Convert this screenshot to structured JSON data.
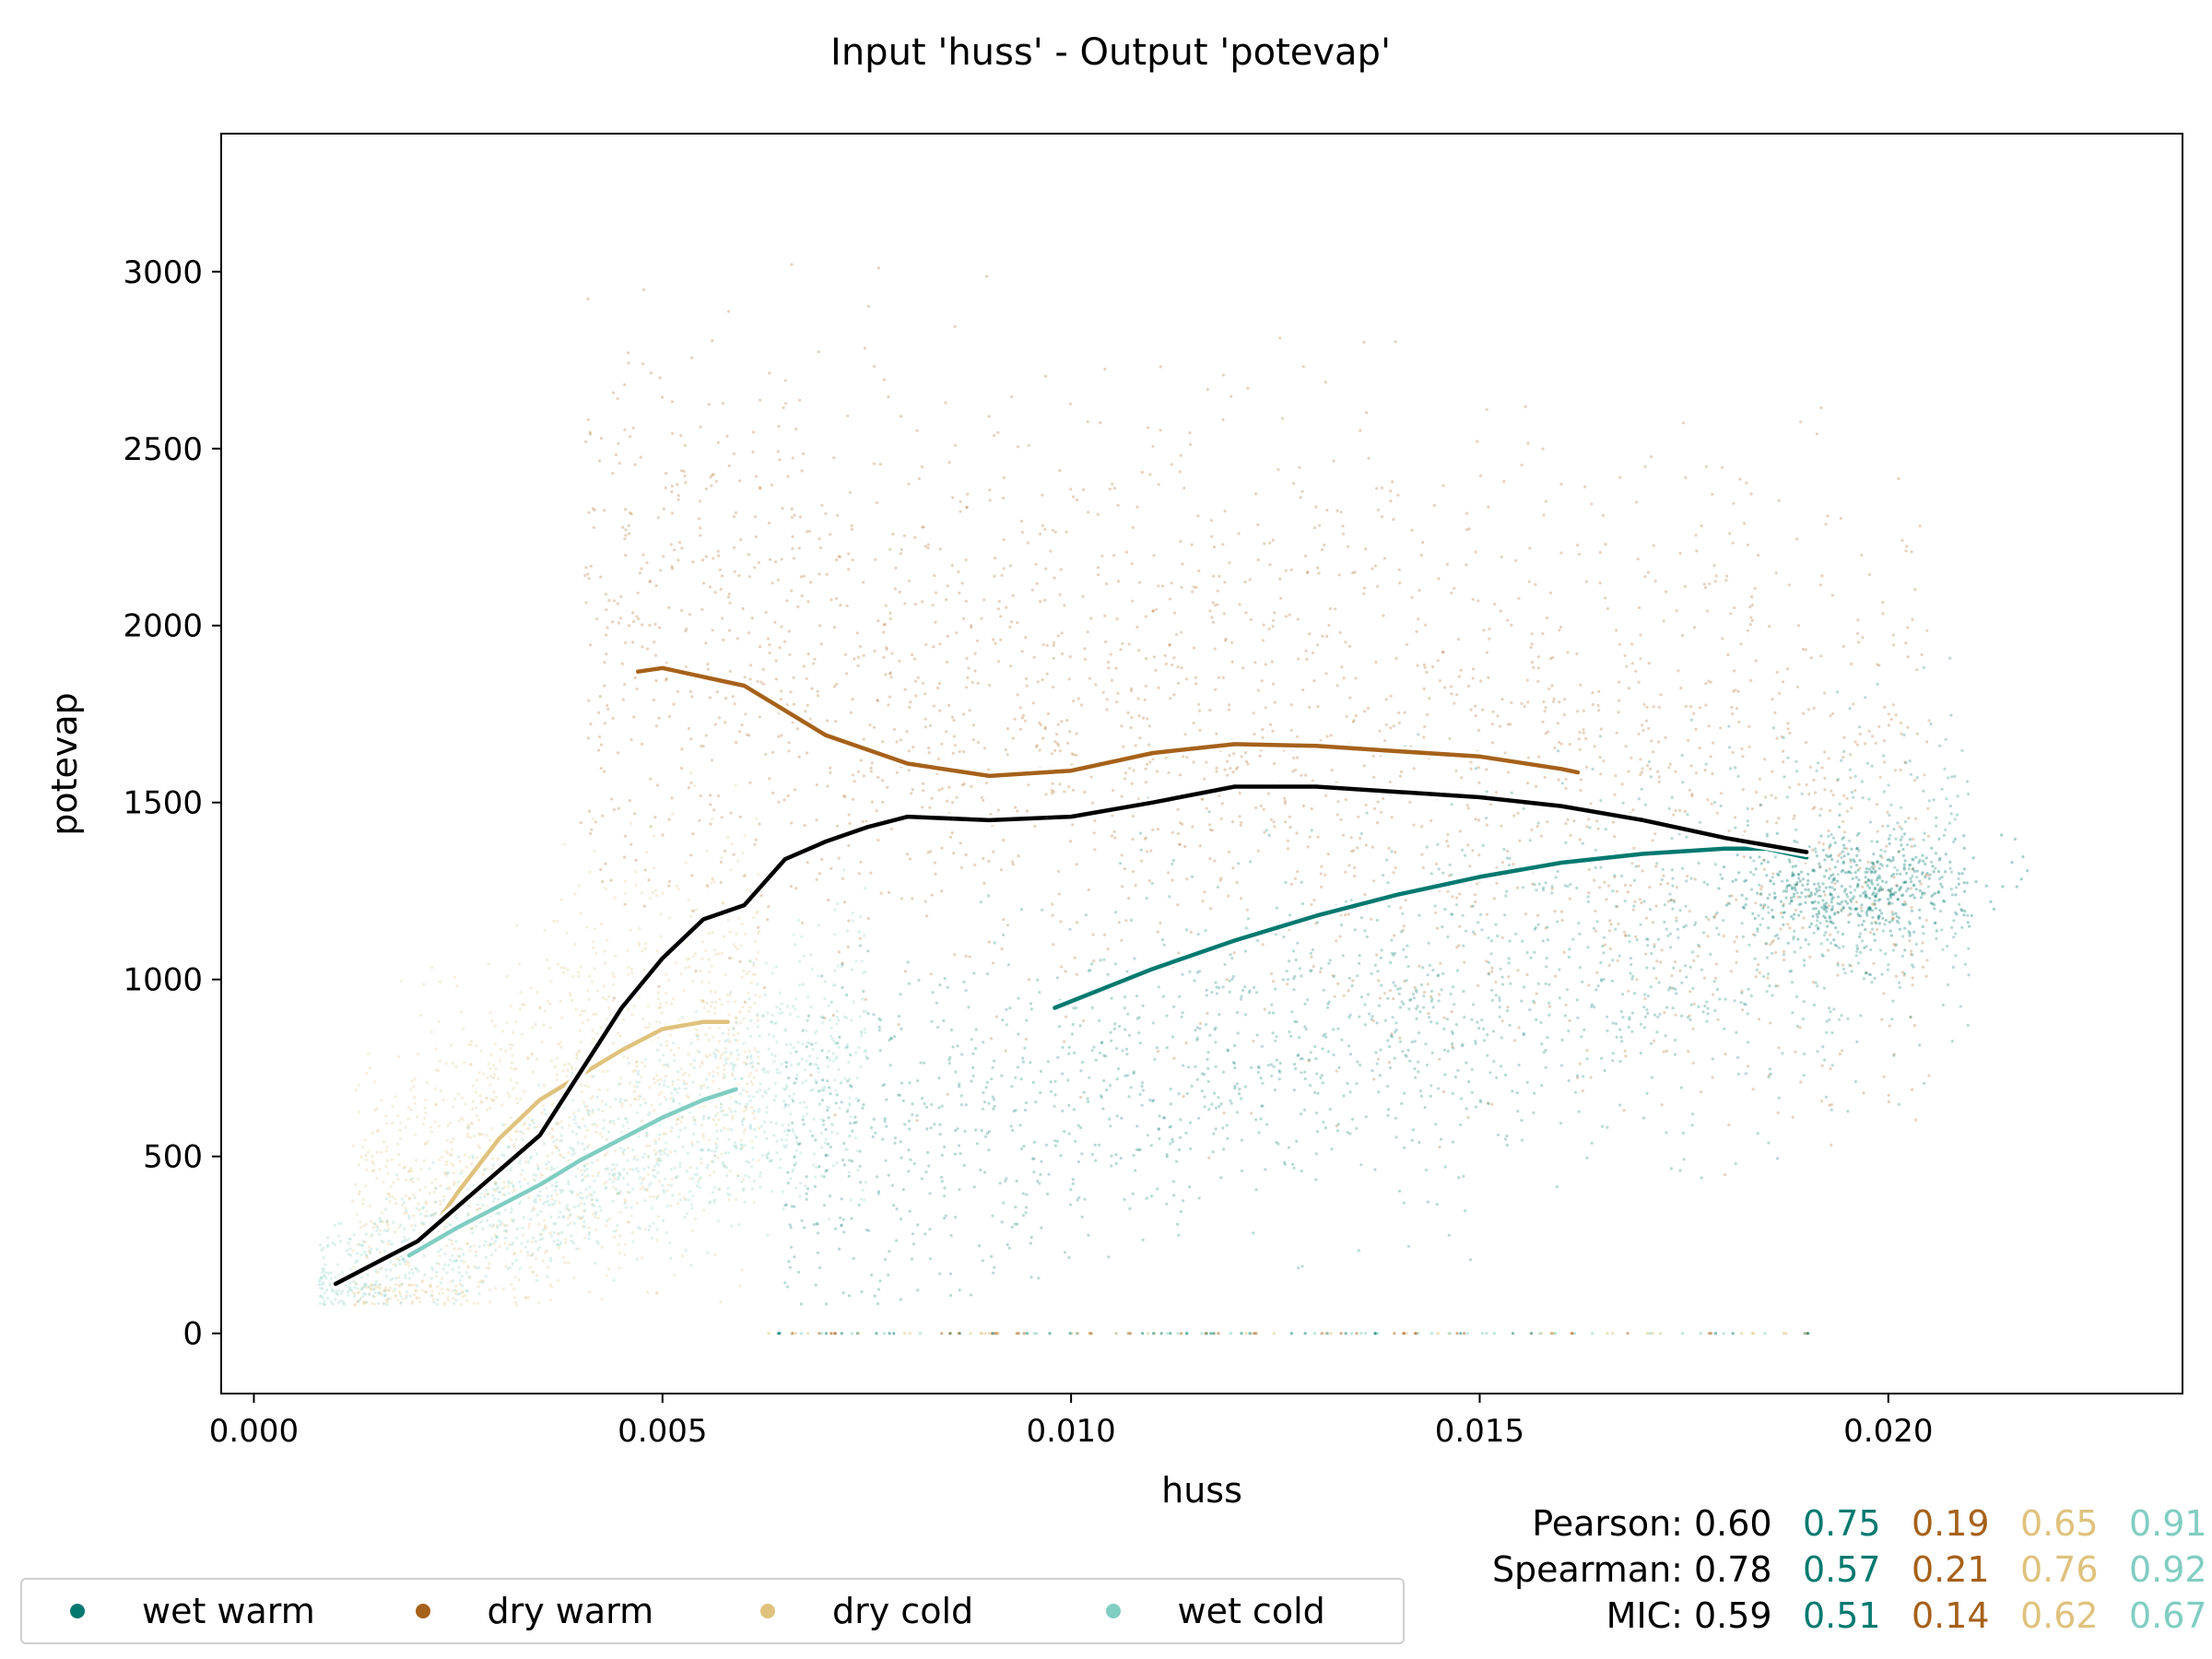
{
  "chart_data": {
    "type": "scatter",
    "title": "Input 'huss' - Output 'potevap'",
    "xlabel": "huss",
    "ylabel": "potevap",
    "xlim": [
      -0.0004,
      0.0236
    ],
    "ylim": [
      -170,
      3390
    ],
    "xticks": [
      0.0,
      0.005,
      0.01,
      0.015,
      0.02
    ],
    "xtick_labels": [
      "0.000",
      "0.005",
      "0.010",
      "0.015",
      "0.020"
    ],
    "yticks": [
      0,
      500,
      1000,
      1500,
      2000,
      2500,
      3000
    ],
    "ytick_labels": [
      "0",
      "500",
      "1000",
      "1500",
      "2000",
      "2500",
      "3000"
    ],
    "grid": false,
    "legend_position": "bottom-left",
    "colors": {
      "overall": "#000000",
      "wet warm": "#01796f",
      "dry warm": "#a6611a",
      "dry cold": "#dfc27d",
      "wet cold": "#80cdc1"
    },
    "series": [
      {
        "name": "wet warm",
        "color": "#01796f",
        "cloud": {
          "x": [
            0.0065,
            0.021
          ],
          "y_center": [
            500,
            1300
          ],
          "spread": 260,
          "dense_center": [
            0.0196,
            1260
          ]
        },
        "trend": [
          [
            0.0098,
            920
          ],
          [
            0.011,
            1030
          ],
          [
            0.012,
            1110
          ],
          [
            0.013,
            1180
          ],
          [
            0.014,
            1240
          ],
          [
            0.015,
            1290
          ],
          [
            0.016,
            1330
          ],
          [
            0.017,
            1355
          ],
          [
            0.018,
            1370
          ],
          [
            0.0185,
            1370
          ],
          [
            0.019,
            1345
          ]
        ]
      },
      {
        "name": "dry warm",
        "color": "#a6611a",
        "cloud": {
          "x": [
            0.004,
            0.0205
          ],
          "y_center": [
            1950,
            1450
          ],
          "spread": 420
        },
        "trend": [
          [
            0.0047,
            1870
          ],
          [
            0.005,
            1880
          ],
          [
            0.006,
            1830
          ],
          [
            0.007,
            1690
          ],
          [
            0.008,
            1610
          ],
          [
            0.009,
            1575
          ],
          [
            0.01,
            1590
          ],
          [
            0.011,
            1640
          ],
          [
            0.012,
            1665
          ],
          [
            0.013,
            1660
          ],
          [
            0.014,
            1645
          ],
          [
            0.015,
            1630
          ],
          [
            0.016,
            1595
          ],
          [
            0.0162,
            1585
          ]
        ]
      },
      {
        "name": "dry cold",
        "color": "#dfc27d",
        "cloud": {
          "x": [
            0.0012,
            0.0062
          ],
          "y_center": [
            250,
            950
          ],
          "spread": 280
        },
        "trend": [
          [
            0.0022,
            300
          ],
          [
            0.0025,
            400
          ],
          [
            0.003,
            550
          ],
          [
            0.0035,
            660
          ],
          [
            0.004,
            730
          ],
          [
            0.0045,
            800
          ],
          [
            0.005,
            860
          ],
          [
            0.0055,
            880
          ],
          [
            0.0058,
            880
          ]
        ]
      },
      {
        "name": "wet cold",
        "color": "#80cdc1",
        "cloud": {
          "x": [
            0.0008,
            0.0075
          ],
          "y_center": [
            130,
            800
          ],
          "spread": 110
        },
        "trend": [
          [
            0.0019,
            220
          ],
          [
            0.0025,
            300
          ],
          [
            0.003,
            360
          ],
          [
            0.0035,
            420
          ],
          [
            0.004,
            490
          ],
          [
            0.0045,
            550
          ],
          [
            0.005,
            610
          ],
          [
            0.0055,
            660
          ],
          [
            0.0059,
            690
          ]
        ]
      }
    ],
    "overall_trend": [
      [
        0.001,
        140
      ],
      [
        0.0015,
        200
      ],
      [
        0.002,
        260
      ],
      [
        0.0025,
        360
      ],
      [
        0.003,
        460
      ],
      [
        0.0035,
        560
      ],
      [
        0.004,
        740
      ],
      [
        0.0045,
        920
      ],
      [
        0.005,
        1060
      ],
      [
        0.0055,
        1170
      ],
      [
        0.006,
        1210
      ],
      [
        0.0065,
        1340
      ],
      [
        0.007,
        1390
      ],
      [
        0.0075,
        1430
      ],
      [
        0.008,
        1460
      ],
      [
        0.009,
        1450
      ],
      [
        0.01,
        1460
      ],
      [
        0.011,
        1500
      ],
      [
        0.012,
        1545
      ],
      [
        0.013,
        1545
      ],
      [
        0.014,
        1530
      ],
      [
        0.015,
        1515
      ],
      [
        0.016,
        1490
      ],
      [
        0.017,
        1450
      ],
      [
        0.018,
        1400
      ],
      [
        0.019,
        1360
      ]
    ],
    "stats": [
      {
        "label": "Pearson:",
        "values": [
          "0.60",
          "0.75",
          "0.19",
          "0.65",
          "0.91"
        ]
      },
      {
        "label": "Spearman:",
        "values": [
          "0.78",
          "0.57",
          "0.21",
          "0.76",
          "0.92"
        ]
      },
      {
        "label": "MIC:",
        "values": [
          "0.59",
          "0.51",
          "0.14",
          "0.62",
          "0.67"
        ]
      }
    ]
  }
}
